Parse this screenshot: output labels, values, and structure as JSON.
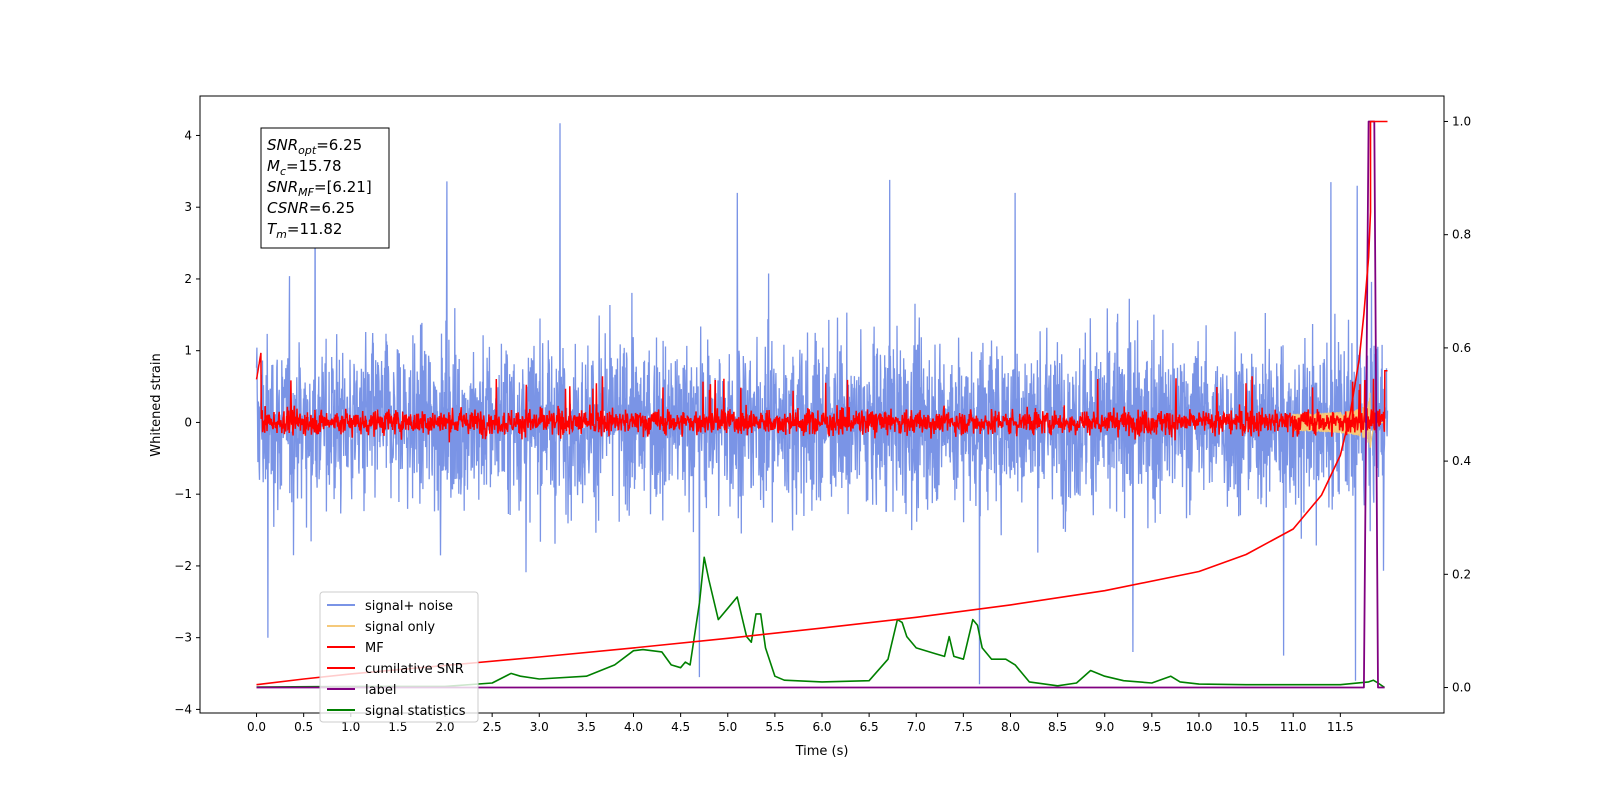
{
  "chart_data": {
    "type": "line",
    "title": "",
    "xlabel": "Time (s)",
    "ylabel": "Whitened strain",
    "ylabel_right": "",
    "xlim": [
      -0.6,
      12.6
    ],
    "ylim": [
      -4.05,
      4.55
    ],
    "ylim_right": [
      -0.045,
      1.045
    ],
    "xticks": [
      "0.0",
      "0.5",
      "1.0",
      "1.5",
      "2.0",
      "2.5",
      "3.0",
      "3.5",
      "4.0",
      "4.5",
      "5.0",
      "5.5",
      "6.0",
      "6.5",
      "7.0",
      "7.5",
      "8.0",
      "8.5",
      "9.0",
      "9.5",
      "10.0",
      "10.5",
      "11.0",
      "11.5"
    ],
    "yticks": [
      "−4",
      "−3",
      "−2",
      "−1",
      "0",
      "1",
      "2",
      "3",
      "4"
    ],
    "yticks_right": [
      "0.0",
      "0.2",
      "0.4",
      "0.6",
      "0.8",
      "1.0"
    ],
    "grid": false,
    "legend_placement": "lower-left",
    "annotation": {
      "lines": [
        {
          "base": "SNR",
          "sub": "opt",
          "value": "=6.25"
        },
        {
          "base": "M",
          "sub": "c",
          "value": "=15.78"
        },
        {
          "base": "SNR",
          "sub": "MF",
          "value": "=[6.21]"
        },
        {
          "base": "CSNR",
          "sub": "",
          "value": "=6.25"
        },
        {
          "base": "T",
          "sub": "m",
          "value": "=11.82"
        }
      ]
    },
    "series": [
      {
        "name": "signal+ noise",
        "axis": "left",
        "color": "#7a94e6",
        "kind": "noise",
        "typical_range": [
          -1.7,
          1.7
        ],
        "peak_max": 4.17,
        "peak_min": -3.65,
        "spikes": [
          [
            3.22,
            4.17
          ],
          [
            0.62,
            3.4
          ],
          [
            2.02,
            3.36
          ],
          [
            6.72,
            3.38
          ],
          [
            11.4,
            3.35
          ],
          [
            8.05,
            3.2
          ],
          [
            11.68,
            3.3
          ],
          [
            5.1,
            3.2
          ],
          [
            4.7,
            -3.55
          ],
          [
            7.67,
            -3.65
          ],
          [
            11.66,
            -3.6
          ],
          [
            9.3,
            -3.2
          ],
          [
            10.9,
            -3.25
          ],
          [
            0.12,
            -3.0
          ]
        ]
      },
      {
        "name": "signal only",
        "axis": "left",
        "color": "#f5c97a",
        "kind": "chirp",
        "t_merger": 11.82,
        "peak_amplitude": 0.45
      },
      {
        "name": "MF",
        "axis": "left",
        "color": "#ff0000",
        "kind": "noise",
        "typical_range": [
          -0.25,
          0.32
        ],
        "x": [
          0.0,
          0.02,
          0.05,
          11.97,
          12.0
        ],
        "y": [
          0.6,
          1.0,
          0.2,
          0.3,
          0.72
        ]
      },
      {
        "name": "cumilative SNR",
        "axis": "right",
        "color": "#ff0000",
        "x": [
          0.0,
          0.5,
          1.0,
          2.0,
          3.0,
          4.0,
          5.0,
          6.0,
          7.0,
          8.0,
          9.0,
          10.0,
          10.5,
          11.0,
          11.3,
          11.5,
          11.6,
          11.7,
          11.75,
          11.8,
          11.82,
          11.82,
          12.0
        ],
        "y": [
          0.005,
          0.015,
          0.024,
          0.039,
          0.054,
          0.07,
          0.087,
          0.105,
          0.124,
          0.146,
          0.171,
          0.205,
          0.235,
          0.28,
          0.34,
          0.41,
          0.48,
          0.58,
          0.66,
          0.76,
          0.84,
          1.0,
          1.0
        ]
      },
      {
        "name": "label",
        "axis": "right",
        "color": "#800080",
        "x": [
          0.0,
          11.75,
          11.8,
          11.86,
          11.9,
          11.97
        ],
        "y": [
          0.0,
          0.0,
          1.0,
          1.0,
          0.0,
          0.0
        ]
      },
      {
        "name": "signal statistics",
        "axis": "right",
        "color": "#008000",
        "x": [
          0.0,
          1.0,
          2.0,
          2.5,
          2.7,
          2.8,
          3.0,
          3.5,
          3.8,
          4.0,
          4.1,
          4.3,
          4.4,
          4.5,
          4.55,
          4.6,
          4.7,
          4.75,
          4.8,
          4.9,
          5.0,
          5.1,
          5.2,
          5.25,
          5.3,
          5.35,
          5.4,
          5.5,
          5.6,
          6.0,
          6.5,
          6.7,
          6.8,
          6.85,
          6.9,
          7.0,
          7.2,
          7.3,
          7.35,
          7.4,
          7.5,
          7.6,
          7.65,
          7.7,
          7.8,
          7.95,
          8.05,
          8.2,
          8.5,
          8.7,
          8.85,
          9.0,
          9.2,
          9.5,
          9.7,
          9.8,
          10.0,
          10.5,
          11.0,
          11.5,
          11.8,
          11.85,
          11.9,
          11.97
        ],
        "y": [
          0.001,
          0.002,
          0.002,
          0.008,
          0.025,
          0.02,
          0.015,
          0.02,
          0.04,
          0.065,
          0.067,
          0.063,
          0.04,
          0.035,
          0.045,
          0.04,
          0.15,
          0.23,
          0.19,
          0.12,
          0.14,
          0.16,
          0.09,
          0.08,
          0.13,
          0.13,
          0.07,
          0.02,
          0.013,
          0.01,
          0.012,
          0.05,
          0.12,
          0.115,
          0.09,
          0.07,
          0.06,
          0.055,
          0.09,
          0.055,
          0.05,
          0.12,
          0.11,
          0.07,
          0.05,
          0.05,
          0.04,
          0.01,
          0.003,
          0.008,
          0.03,
          0.02,
          0.012,
          0.008,
          0.02,
          0.01,
          0.006,
          0.005,
          0.005,
          0.005,
          0.01,
          0.013,
          0.008,
          0.0
        ]
      }
    ]
  }
}
